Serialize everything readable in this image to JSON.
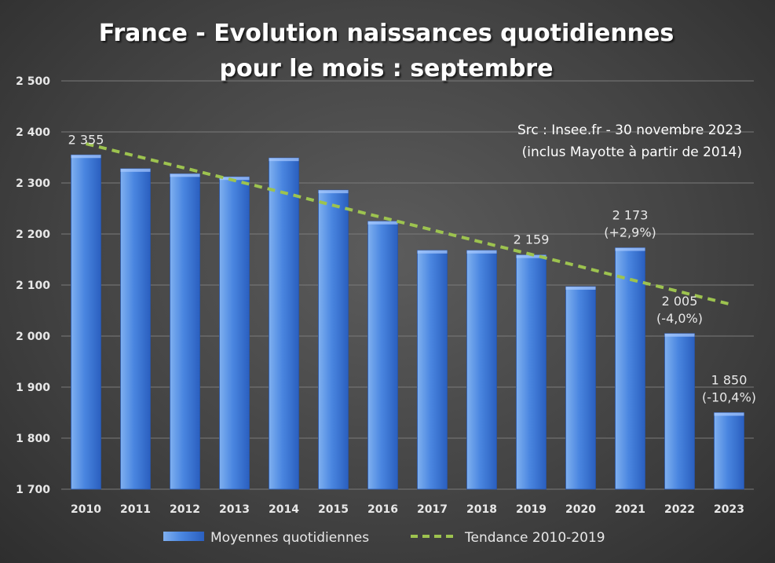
{
  "chart_data": {
    "type": "bar",
    "title": [
      "France - Evolution naissances quotidiennes",
      "pour le mois : septembre"
    ],
    "source_note": [
      "Src : Insee.fr - 30 novembre 2023",
      "(inclus Mayotte à partir de 2014)"
    ],
    "categories": [
      "2010",
      "2011",
      "2012",
      "2013",
      "2014",
      "2015",
      "2016",
      "2017",
      "2018",
      "2019",
      "2020",
      "2021",
      "2022",
      "2023"
    ],
    "series": [
      {
        "name": "Moyennes quotidiennes",
        "type": "bar",
        "values": [
          2355,
          2328,
          2318,
          2312,
          2349,
          2286,
          2225,
          2168,
          2168,
          2159,
          2097,
          2173,
          2005,
          1850
        ]
      },
      {
        "name": "Tendance 2010-2019",
        "type": "line-dashed",
        "values": [
          2377,
          2353,
          2329,
          2305,
          2281,
          2256,
          2232,
          2208,
          2184,
          2160,
          2136,
          2111,
          2087,
          2063
        ]
      }
    ],
    "data_labels": [
      {
        "category": "2010",
        "lines": [
          "2 355"
        ]
      },
      {
        "category": "2019",
        "lines": [
          "2 159"
        ]
      },
      {
        "category": "2021",
        "lines": [
          "2 173",
          "(+2,9%)"
        ]
      },
      {
        "category": "2022",
        "lines": [
          "2 005",
          "(-4,0%)"
        ]
      },
      {
        "category": "2023",
        "lines": [
          "1 850",
          "(-10,4%)"
        ]
      }
    ],
    "ylim": [
      1700,
      2500
    ],
    "y_ticks": [
      1700,
      1800,
      1900,
      2000,
      2100,
      2200,
      2300,
      2400,
      2500
    ],
    "y_tick_labels": [
      "1 700",
      "1 800",
      "1 900",
      "2 000",
      "2 100",
      "2 200",
      "2 300",
      "2 400",
      "2 500"
    ],
    "grid": true,
    "legend_position": "bottom",
    "xlabel": "",
    "ylabel": "",
    "colors": {
      "bar_top": "#7fb0f0",
      "bar_mid": "#4a86e0",
      "bar_bottom": "#2a5fbf",
      "trend": "#9dc34f",
      "text": "#ffffff",
      "label": "#e8e8e8",
      "grid": "#7a7a7a"
    }
  }
}
